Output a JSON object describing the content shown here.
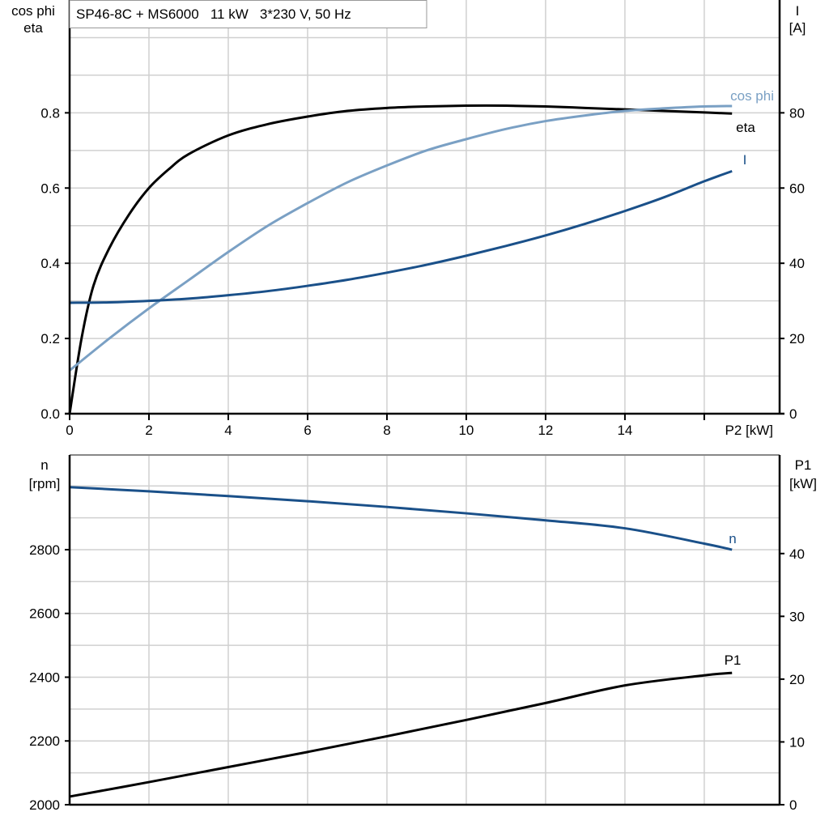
{
  "chart_data": [
    {
      "type": "line",
      "title": "SP46-8C + MS6000   11 kW   3*230 V, 50 Hz",
      "xlabel": "P2 [kW]",
      "ylabel_left": [
        "cos phi",
        "eta"
      ],
      "ylabel_right": [
        "I",
        "[A]"
      ],
      "xlim": [
        0,
        17.9
      ],
      "ylim_left": [
        0,
        1.1
      ],
      "ylim_right": [
        0,
        110
      ],
      "x_ticks": [
        0,
        2,
        4,
        6,
        8,
        10,
        12,
        14,
        16
      ],
      "x_tick_labels": [
        "0",
        "2",
        "4",
        "6",
        "8",
        "10",
        "12",
        "14",
        ""
      ],
      "y_left_ticks": [
        "0.0",
        "0.2",
        "0.4",
        "0.6",
        "0.8"
      ],
      "y_right_ticks": [
        "0",
        "20",
        "40",
        "60",
        "80"
      ],
      "grid": true,
      "series": [
        {
          "name": "eta",
          "axis": "left",
          "color": "#000000",
          "x": [
            0,
            0.3,
            0.6,
            1,
            1.5,
            2,
            2.5,
            3,
            4,
            5,
            6,
            7,
            8,
            9,
            10,
            11,
            12,
            13,
            14,
            15,
            16,
            16.7
          ],
          "y": [
            0,
            0.2,
            0.34,
            0.44,
            0.53,
            0.6,
            0.65,
            0.69,
            0.74,
            0.77,
            0.79,
            0.805,
            0.813,
            0.817,
            0.819,
            0.819,
            0.817,
            0.813,
            0.809,
            0.805,
            0.801,
            0.798
          ]
        },
        {
          "name": "cos phi",
          "axis": "left",
          "color": "#7aa0c4",
          "x": [
            0,
            1,
            2,
            3,
            4,
            5,
            6,
            7,
            8,
            9,
            10,
            11,
            12,
            13,
            14,
            15,
            16,
            16.7
          ],
          "y": [
            0.115,
            0.2,
            0.28,
            0.355,
            0.43,
            0.5,
            0.56,
            0.615,
            0.66,
            0.7,
            0.73,
            0.757,
            0.778,
            0.793,
            0.805,
            0.812,
            0.817,
            0.818
          ]
        },
        {
          "name": "I",
          "axis": "right",
          "color": "#1a5089",
          "x": [
            0,
            1,
            2,
            3,
            4,
            5,
            6,
            7,
            8,
            9,
            10,
            11,
            12,
            13,
            14,
            15,
            16,
            16.7
          ],
          "y": [
            29.5,
            29.6,
            30,
            30.6,
            31.5,
            32.6,
            34,
            35.6,
            37.5,
            39.6,
            42,
            44.6,
            47.4,
            50.5,
            53.9,
            57.6,
            61.8,
            64.5
          ]
        }
      ]
    },
    {
      "type": "line",
      "xlim": [
        0,
        17.9
      ],
      "ylabel_left": [
        "n",
        "[rpm]"
      ],
      "ylabel_right": [
        "P1",
        "[kW]"
      ],
      "ylim_left": [
        2000,
        3097
      ],
      "ylim_right": [
        0,
        55.7
      ],
      "y_left_ticks": [
        "2000",
        "2200",
        "2400",
        "2600",
        "2800"
      ],
      "y_right_ticks": [
        "0",
        "10",
        "20",
        "30",
        "40"
      ],
      "grid": true,
      "series": [
        {
          "name": "n",
          "axis": "left",
          "color": "#1a5089",
          "x": [
            0,
            2,
            4,
            6,
            8,
            10,
            12,
            14,
            16,
            16.7
          ],
          "y": [
            2996,
            2983,
            2968,
            2952,
            2934,
            2914,
            2892,
            2867,
            2819,
            2800
          ]
        },
        {
          "name": "P1",
          "axis": "right",
          "color": "#000000",
          "x": [
            0,
            2,
            4,
            6,
            8,
            10,
            12,
            14,
            16,
            16.7
          ],
          "y": [
            1.3,
            3.6,
            6.0,
            8.4,
            10.9,
            13.5,
            16.2,
            19.0,
            20.6,
            21.0
          ]
        }
      ]
    }
  ]
}
